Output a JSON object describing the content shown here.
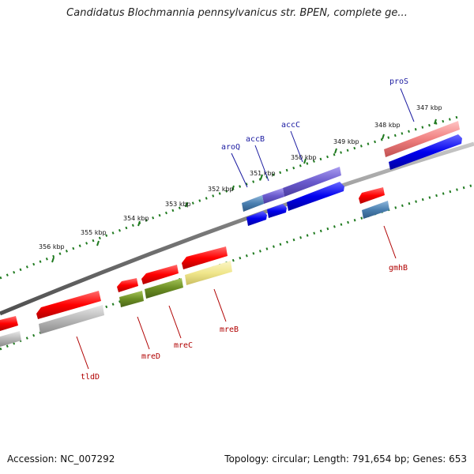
{
  "title": "Candidatus Blochmannia pennsylvanicus str. BPEN, complete ge...",
  "footer": {
    "accession": "Accession: NC_007292",
    "summary": "Topology: circular; Length: 791,654 bp; Genes: 653"
  },
  "scale_labels": [
    "347 kbp",
    "348 kbp",
    "349 kbp",
    "350 kbp",
    "351 kbp",
    "352 kbp",
    "353 kbp",
    "354 kbp",
    "355 kbp",
    "356 kbp"
  ],
  "gene_labels": {
    "proS": "proS",
    "accC": "accC",
    "accB": "accB",
    "aroQ": "aroQ",
    "gmhB": "gmhB",
    "mreB": "mreB",
    "mreC": "mreC",
    "mreD": "mreD",
    "tldD": "tldD"
  },
  "colors": {
    "backbone": "#8a8a8a",
    "ticks": "#1f7a1f",
    "forward_label": "#1a1aa0",
    "reverse_label": "#b00000",
    "gene_red": "#e00000",
    "gene_blue": "#0000dd",
    "gene_purple": "#6a5acd",
    "gene_steelblue": "#4a7fb0",
    "gene_gray": "#b0b0b0",
    "gene_olive": "#6b8e23",
    "gene_khaki": "#f0e68c",
    "gene_pink": "#f08080"
  }
}
